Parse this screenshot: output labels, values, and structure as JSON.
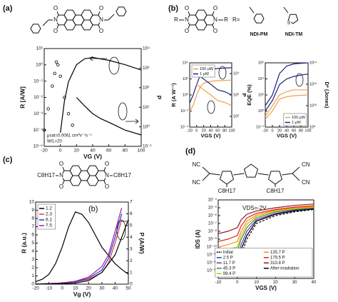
{
  "panels": {
    "a": {
      "label": "(a)",
      "atoms": [
        "O",
        "O",
        "N",
        "N",
        "O",
        "O"
      ],
      "chart": {
        "xlim": [
          -20,
          100
        ],
        "xticks": [
          -20,
          0,
          20,
          40,
          60,
          80,
          100
        ],
        "ylim": [
          1e-05,
          10
        ],
        "ylog": true,
        "yticks": [
          {
            "value": 1e-05,
            "label": "10⁻⁵"
          },
          {
            "value": 0.0001,
            "label": "10⁻⁴"
          },
          {
            "value": 0.001,
            "label": "10⁻³"
          },
          {
            "value": 0.01,
            "label": "10⁻²"
          },
          {
            "value": 0.1,
            "label": "10⁻¹"
          },
          {
            "value": 1,
            "label": "10⁰"
          },
          {
            "value": 10,
            "label": "10¹"
          }
        ],
        "y2lim": [
          0.1,
          10000
        ],
        "y2log": true,
        "y2ticks": [
          {
            "value": 0.1,
            "label": "10⁻¹"
          },
          {
            "value": 1,
            "label": "10⁰"
          },
          {
            "value": 10,
            "label": "10¹"
          },
          {
            "value": 100,
            "label": "10²"
          },
          {
            "value": 1000,
            "label": "10³"
          },
          {
            "value": 10000,
            "label": "10⁴"
          }
        ],
        "xlabel": "VG (V)",
        "ylabel": "R [A/W]",
        "y2label": "P",
        "series": [
          {
            "color": "#000000",
            "marker": "circle",
            "x": [
              -20,
              -15,
              -10,
              -7,
              -5,
              -3,
              0,
              5,
              10,
              15
            ],
            "values": [
              0.0001,
              0.002,
              0.05,
              0.3,
              1.5,
              1,
              0.2,
              0.01,
              0.001,
              0.0002
            ]
          },
          {
            "color": "#000000",
            "axis": "y2",
            "x": [
              0,
              5,
              10,
              20,
              30,
              40,
              60,
              80,
              100
            ],
            "values": [
              0.5,
              20,
              200,
              1500,
              3000,
              3500,
              2500,
              1500,
              800
            ]
          },
          {
            "color": "#000000",
            "x": [
              20,
              30,
              40,
              50,
              60,
              80,
              100
            ],
            "values": [
              0.01,
              0.003,
              0.001,
              0.0005,
              0.0003,
              0.0001,
              5e-05
            ]
          }
        ],
        "annotations": [
          "μsat=0.0061 cm²V⁻¹s⁻¹",
          "W/L=20"
        ]
      }
    },
    "b": {
      "label": "(b)",
      "atoms": [
        "O",
        "O",
        "R",
        "N",
        "N",
        "R",
        "O",
        "O"
      ],
      "r_label": "R=",
      "substituents": [
        "NDI-PM",
        "NDI-TM"
      ],
      "hetero_atom": "S",
      "charts": [
        {
          "xlim": [
            -20,
            100
          ],
          "xticks": [
            -20,
            0,
            20,
            40,
            60,
            80,
            100
          ],
          "ylim": [
            0.0001,
            10000
          ],
          "ylog": true,
          "yticks": [
            {
              "value": 0.0001,
              "label": "10⁻⁴"
            },
            {
              "value": 0.01,
              "label": "10⁻²"
            },
            {
              "value": 1,
              "label": "10⁰"
            },
            {
              "value": 100,
              "label": "10²"
            },
            {
              "value": 10000,
              "label": "10⁴"
            }
          ],
          "y2lim": [
            0.1,
            100000
          ],
          "y2log": true,
          "y2ticks": [
            {
              "value": 1,
              "label": "10⁰"
            },
            {
              "value": 100,
              "label": "10²"
            },
            {
              "value": 10000,
              "label": "10⁴"
            }
          ],
          "xlabel": "VGS (V)",
          "ylabel": "R (A W⁻¹)",
          "y2label": "P",
          "legend": "upper left",
          "series": [
            {
              "name": "100 μW",
              "color": "#f0a050",
              "x": [
                -20,
                -10,
                0,
                10,
                20,
                40,
                60,
                80,
                100
              ],
              "values": [
                0.01,
                0.05,
                1,
                10,
                30,
                50,
                60,
                65,
                70
              ]
            },
            {
              "name": "1 μW",
              "color": "#1a237e",
              "x": [
                -20,
                -10,
                0,
                10,
                20,
                40,
                60,
                80,
                100
              ],
              "values": [
                0.1,
                1,
                20,
                300,
                1000,
                1500,
                2000,
                2200,
                2500
              ]
            },
            {
              "color": "#f0a050",
              "axis": "y2",
              "x": [
                0,
                20,
                40,
                60,
                80,
                100
              ],
              "values": [
                1000,
                300,
                100,
                30,
                20,
                10
              ]
            },
            {
              "color": "#1a237e",
              "axis": "y2",
              "x": [
                0,
                20,
                40,
                60,
                80,
                100
              ],
              "values": [
                10000,
                3000,
                1000,
                300,
                200,
                100
              ]
            }
          ]
        },
        {
          "xlim": [
            -20,
            100
          ],
          "xticks": [
            -20,
            0,
            20,
            40,
            60,
            80,
            100
          ],
          "ylim": [
            0.01,
            1000000
          ],
          "ylog": true,
          "yticks": [
            {
              "value": 0.01,
              "label": "10⁻²"
            },
            {
              "value": 1,
              "label": "10⁰"
            },
            {
              "value": 100,
              "label": "10²"
            },
            {
              "value": 10000,
              "label": "10⁴"
            },
            {
              "value": 1000000,
              "label": "10⁶"
            }
          ],
          "y2lim": [
            100000000.0,
            100000000000000.0
          ],
          "y2log": true,
          "y2ticks": [
            {
              "value": 100000000.0,
              "label": "10⁸"
            },
            {
              "value": 10000000000.0,
              "label": "10¹⁰"
            },
            {
              "value": 1000000000000.0,
              "label": "10¹²"
            },
            {
              "value": 100000000000000.0,
              "label": "10¹⁴"
            }
          ],
          "xlabel": "VGS (V)",
          "ylabel": "EQE (%)",
          "y2label": "D* (Jones)",
          "legend": "lower right",
          "series": [
            {
              "name": "100 μW",
              "color": "#f0a050",
              "x": [
                -20,
                0,
                20,
                40,
                60,
                80,
                100
              ],
              "values": [
                0.1,
                1,
                30,
                60,
                80,
                90,
                100
              ]
            },
            {
              "name": "1 μW",
              "color": "#1a237e",
              "x": [
                -20,
                0,
                20,
                40,
                60,
                80,
                100
              ],
              "values": [
                1,
                20,
                2000,
                10000,
                20000,
                30000,
                40000
              ]
            },
            {
              "color": "#f0a050",
              "axis": "y2",
              "x": [
                -20,
                0,
                20,
                40,
                60,
                80,
                100
              ],
              "values": [
                1000000000.0,
                10000000000.0,
                100000000000.0,
                200000000000.0,
                300000000000.0,
                300000000000.0,
                300000000000.0
              ]
            },
            {
              "color": "#1a237e",
              "axis": "y2",
              "x": [
                -20,
                0,
                20,
                40,
                60,
                80,
                100
              ],
              "values": [
                10000000000.0,
                100000000000.0,
                10000000000000.0,
                50000000000000.0,
                80000000000000.0,
                90000000000000.0,
                100000000000000.0
              ]
            }
          ]
        }
      ]
    },
    "c": {
      "label": "(c)",
      "atoms": [
        "O",
        "O",
        "C8H17",
        "N",
        "N",
        "C8H17",
        "O",
        "O"
      ],
      "chart": {
        "xlim": [
          -20,
          50
        ],
        "xticks": [
          -20,
          -10,
          0,
          10,
          20,
          30,
          40,
          50
        ],
        "ylim": [
          0,
          10
        ],
        "yticks": [
          0,
          1,
          2,
          3,
          4,
          5,
          6,
          7,
          8,
          9,
          10
        ],
        "y2lim": [
          0,
          7
        ],
        "y2ticks": [
          0,
          1,
          2,
          3,
          4,
          5,
          6,
          7
        ],
        "xlabel": "Vg (V)",
        "ylabel": "R (a.u.)",
        "y2label": "P (A/W)",
        "legend": "upper left",
        "series": [
          {
            "name": "1.2",
            "color": "#000000",
            "x": [
              -20,
              -15,
              -10,
              -5,
              0,
              5,
              10,
              15,
              20,
              25,
              30,
              35,
              40,
              45,
              50
            ],
            "values": [
              0.3,
              0.6,
              1.2,
              2.5,
              4.5,
              7,
              8.8,
              8.5,
              7.5,
              6,
              4.5,
              3.5,
              2.5,
              1.8,
              1.2
            ]
          },
          {
            "name": "2.3",
            "color": "#e53935",
            "axis": "y2",
            "x": [
              -20,
              0,
              10,
              20,
              30,
              35,
              40,
              45
            ],
            "values": [
              0,
              0.1,
              0.2,
              0.4,
              1,
              1.8,
              3.5,
              5.5
            ]
          },
          {
            "name": "6.1",
            "color": "#1e3fd0",
            "axis": "y2",
            "x": [
              -20,
              0,
              10,
              20,
              30,
              35,
              40,
              45
            ],
            "values": [
              0,
              0.1,
              0.2,
              0.5,
              1.2,
              2.2,
              4,
              6
            ]
          },
          {
            "name": "7.5",
            "color": "#a020a0",
            "axis": "y2",
            "x": [
              -20,
              0,
              10,
              20,
              30,
              35,
              40,
              45
            ],
            "values": [
              0,
              0.1,
              0.25,
              0.6,
              1.5,
              2.5,
              4.5,
              6.5
            ]
          },
          {
            "color": "#000000",
            "axis": "y2",
            "x": [
              -20,
              0,
              10,
              20,
              30,
              40,
              45,
              50
            ],
            "values": [
              0,
              0.05,
              0.1,
              0.3,
              1,
              2.5,
              4,
              5.5
            ]
          }
        ],
        "annotations": [
          "(b)"
        ]
      }
    },
    "d": {
      "label": "(d)",
      "atoms": [
        "NC",
        "NC",
        "CN",
        "CN",
        "C8H17",
        "C8H17"
      ],
      "chart": {
        "xlim": [
          -10,
          40
        ],
        "xticks": [
          -10,
          0,
          10,
          20,
          30,
          40
        ],
        "ylim": [
          1e-14,
          0.0001
        ],
        "ylog": true,
        "yticks": [
          {
            "value": 0.0001,
            "label": "10⁻⁴"
          },
          {
            "value": 1e-05,
            "label": "10⁻⁵"
          },
          {
            "value": 1e-06,
            "label": "10⁻⁶"
          },
          {
            "value": 1e-07,
            "label": "10⁻⁷"
          },
          {
            "value": 1e-08,
            "label": "10⁻⁸"
          },
          {
            "value": 1e-09,
            "label": "10⁻⁹"
          },
          {
            "value": 1e-10,
            "label": "10⁻¹⁰"
          },
          {
            "value": 1e-11,
            "label": "10⁻¹¹"
          },
          {
            "value": 1e-12,
            "label": "10⁻¹²"
          },
          {
            "value": 1e-13,
            "label": "10⁻¹³"
          }
        ],
        "xlabel": "VGS (V)",
        "ylabel": "IDS (A)",
        "legend": "lower right",
        "x": [
          -10,
          -5,
          0,
          2,
          5,
          10,
          20,
          30,
          40
        ],
        "series": [
          {
            "name": "Initial",
            "color": "#000000",
            "dash": true,
            "values": [
              1e-13,
              1e-13,
              2e-13,
              1e-11,
              1e-09,
              1e-07,
              1e-06,
              3e-06,
              6e-06
            ]
          },
          {
            "name": "2.5 P",
            "color": "#1f3fbf",
            "values": [
              3e-13,
              5e-13,
              1e-12,
              5e-11,
              3e-09,
              2e-07,
              1.5e-06,
              4e-06,
              7e-06
            ]
          },
          {
            "name": "11.7 P",
            "color": "#7b2fbf",
            "values": [
              1e-12,
              2e-12,
              5e-12,
              2e-10,
              1e-08,
              3e-07,
              2e-06,
              5e-06,
              8e-06
            ]
          },
          {
            "name": "45.3 P",
            "color": "#2a9a3a",
            "values": [
              5e-12,
              1e-11,
              3e-11,
              1e-09,
              3e-08,
              5e-07,
              3e-06,
              6e-06,
              1e-05
            ]
          },
          {
            "name": "99.4 P",
            "color": "#c8c000",
            "values": [
              2e-11,
              5e-11,
              1e-10,
              3e-09,
              8e-08,
              8e-07,
              4e-06,
              8e-06,
              1.2e-05
            ]
          },
          {
            "name": "135.7 P",
            "color": "#ff8c1a",
            "values": [
              1e-10,
              2e-10,
              5e-10,
              1e-08,
              2e-07,
              1.2e-06,
              5e-06,
              1e-05,
              1.5e-05
            ]
          },
          {
            "name": "179.5 P",
            "color": "#e02020",
            "values": [
              5e-10,
              1e-09,
              3e-09,
              5e-08,
              5e-07,
              2e-06,
              6e-06,
              1.2e-05,
              1.8e-05
            ]
          },
          {
            "name": "310.8 P",
            "color": "#8b1a1a",
            "values": [
              5e-09,
              1e-08,
              3e-08,
              3e-07,
              1.5e-06,
              4e-06,
              1e-05,
              2e-05,
              3e-05
            ]
          },
          {
            "name": "After irradiation",
            "color": "#000000",
            "values": [
              1e-13,
              1e-13,
              1e-12,
              5e-11,
              3e-09,
              2e-07,
              1.5e-06,
              4e-06,
              7e-06
            ]
          }
        ],
        "annotations": [
          "VDS=-2V"
        ]
      }
    }
  }
}
